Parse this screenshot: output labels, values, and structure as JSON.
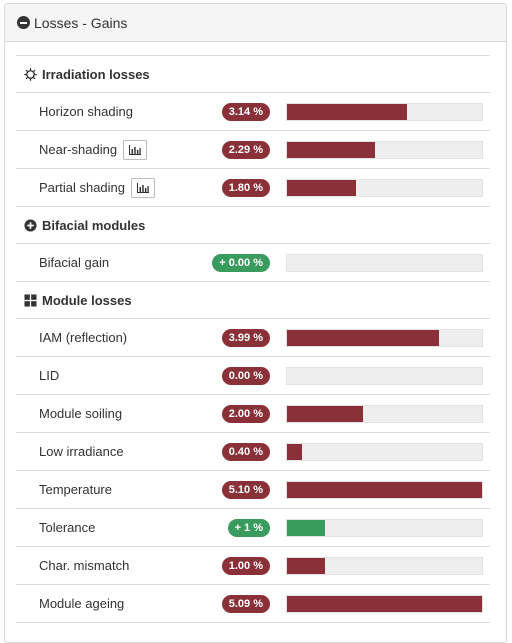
{
  "panel": {
    "title": "Losses - Gains"
  },
  "sections": {
    "irradiation": {
      "title": "Irradiation losses",
      "rows": [
        {
          "label": "Horizon shading",
          "value": "3.14 %",
          "fraction": 0.616,
          "kind": "loss"
        },
        {
          "label": "Near-shading",
          "value": "2.29 %",
          "fraction": 0.449,
          "kind": "loss"
        },
        {
          "label": "Partial shading",
          "value": "1.80 %",
          "fraction": 0.353,
          "kind": "loss"
        }
      ]
    },
    "bifacial": {
      "title": "Bifacial modules",
      "rows": [
        {
          "label": "Bifacial gain",
          "value": "+ 0.00 %",
          "fraction": 0.0,
          "kind": "gain"
        }
      ]
    },
    "module": {
      "title": "Module losses",
      "rows": [
        {
          "label": "IAM (reflection)",
          "value": "3.99 %",
          "fraction": 0.782,
          "kind": "loss"
        },
        {
          "label": "LID",
          "value": "0.00 %",
          "fraction": 0.0,
          "kind": "loss"
        },
        {
          "label": "Module soiling",
          "value": "2.00 %",
          "fraction": 0.392,
          "kind": "loss"
        },
        {
          "label": "Low irradiance",
          "value": "0.40 %",
          "fraction": 0.078,
          "kind": "loss"
        },
        {
          "label": "Temperature",
          "value": "5.10 %",
          "fraction": 1.0,
          "kind": "loss"
        },
        {
          "label": "Tolerance",
          "value": "+ 1 %",
          "fraction": 0.196,
          "kind": "gain"
        },
        {
          "label": "Char. mismatch",
          "value": "1.00 %",
          "fraction": 0.196,
          "kind": "loss"
        },
        {
          "label": "Module ageing",
          "value": "5.09 %",
          "fraction": 0.998,
          "kind": "loss"
        }
      ]
    }
  },
  "icons": {
    "header": "minus-circle-icon",
    "irradiation": "sun-outline-icon",
    "bifacial": "plus-circle-icon",
    "module": "grid-icon",
    "chart_button": "bar-chart-icon"
  },
  "colors": {
    "loss": "#8a3038",
    "gain": "#3a9b5e",
    "track": "#eeeeee"
  }
}
